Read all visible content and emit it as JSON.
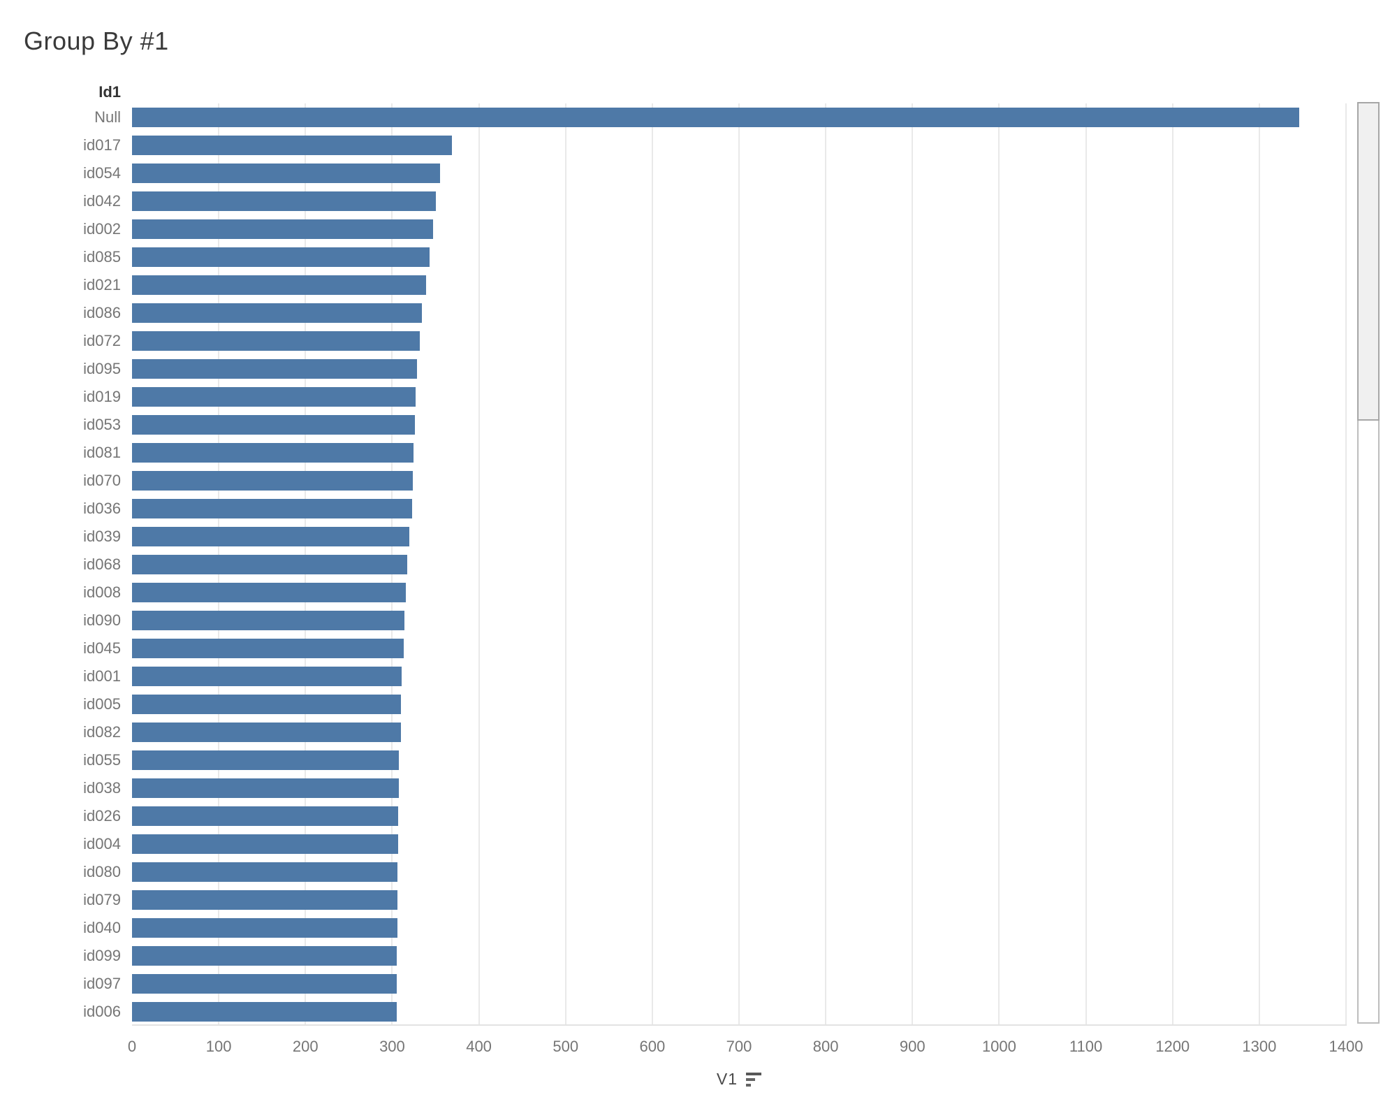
{
  "title": "Group By #1",
  "column_header": "Id1",
  "axis": {
    "title": "V1",
    "sort_icon": "sort-descending-icon",
    "ticks": [
      0,
      100,
      200,
      300,
      400,
      500,
      600,
      700,
      800,
      900,
      1000,
      1100,
      1200,
      1300,
      1400
    ]
  },
  "colors": {
    "bar": "#4e79a7",
    "gridline": "#e9e9e9",
    "label": "#757575",
    "title": "#3a3a3a"
  },
  "chart_data": {
    "type": "bar",
    "orientation": "horizontal",
    "title": "Group By #1",
    "xlabel": "V1",
    "ylabel": "Id1",
    "xlim": [
      0,
      1400
    ],
    "grid": true,
    "sort": "descending",
    "categories": [
      "Null",
      "id017",
      "id054",
      "id042",
      "id002",
      "id085",
      "id021",
      "id086",
      "id072",
      "id095",
      "id019",
      "id053",
      "id081",
      "id070",
      "id036",
      "id039",
      "id068",
      "id008",
      "id090",
      "id045",
      "id001",
      "id005",
      "id082",
      "id055",
      "id038",
      "id026",
      "id004",
      "id080",
      "id079",
      "id040",
      "id099",
      "id097",
      "id006"
    ],
    "values": [
      1346,
      369,
      355,
      350,
      347,
      343,
      339,
      334,
      332,
      329,
      327,
      326,
      325,
      324,
      323,
      320,
      317,
      316,
      314,
      313,
      311,
      310,
      310,
      308,
      308,
      307,
      307,
      306,
      306,
      306,
      305,
      305,
      305
    ]
  }
}
